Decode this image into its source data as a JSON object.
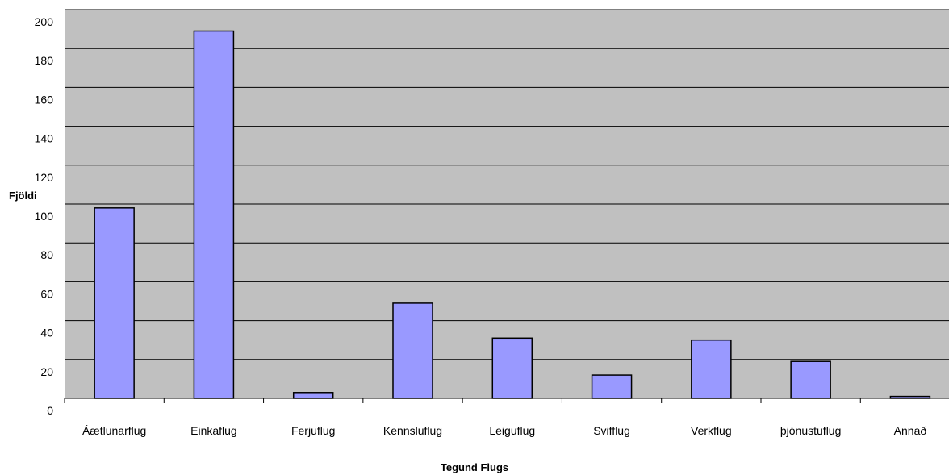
{
  "chart_data": {
    "type": "bar",
    "title": "",
    "xlabel": "Tegund Flugs",
    "ylabel": "Fjöldi",
    "categories": [
      "Áætlunarflug",
      "Einkaflug",
      "Ferjuflug",
      "Kennsluflug",
      "Leiguflug",
      "Svifflug",
      "Verkflug",
      "þjónustuflug",
      "Annað"
    ],
    "values": [
      98,
      189,
      3,
      49,
      31,
      12,
      30,
      19,
      1
    ],
    "ylim": [
      0,
      200
    ],
    "yticks": [
      0,
      20,
      40,
      60,
      80,
      100,
      120,
      140,
      160,
      180,
      200
    ],
    "grid": true,
    "legend": "none",
    "colors": {
      "plot_background": "#c0c0c0",
      "bar_fill": "#9999ff",
      "bar_stroke": "#000000",
      "grid": "#000000"
    }
  }
}
